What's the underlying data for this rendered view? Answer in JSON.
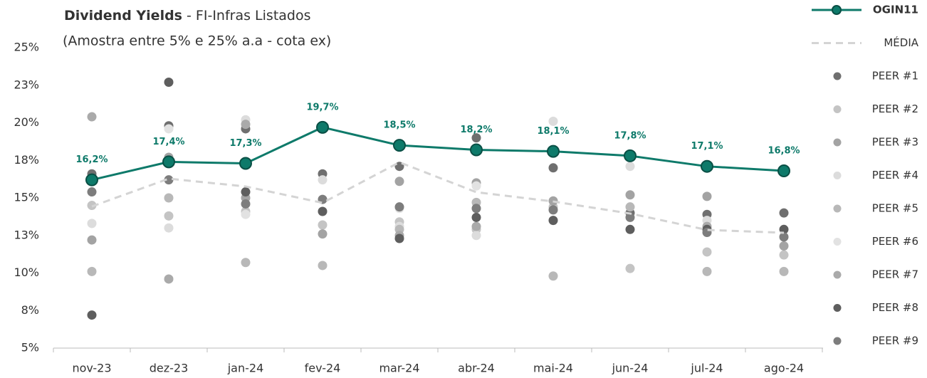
{
  "chart_data": {
    "type": "line",
    "title": "Dividend Yields",
    "title_suffix": " - FI-Infras Listados",
    "subtitle": "(Amostra entre 5% e 25% a.a - cota ex)",
    "categories": [
      "nov-23",
      "dez-23",
      "jan-24",
      "fev-24",
      "mar-24",
      "abr-24",
      "mai-24",
      "jun-24",
      "jul-24",
      "ago-24"
    ],
    "ylim": [
      5,
      25
    ],
    "yticks": [
      {
        "value": 5,
        "label": "5%"
      },
      {
        "value": 7.5,
        "label": "8%"
      },
      {
        "value": 10,
        "label": "10%"
      },
      {
        "value": 12.5,
        "label": "13%"
      },
      {
        "value": 15,
        "label": "15%"
      },
      {
        "value": 17.5,
        "label": "18%"
      },
      {
        "value": 20,
        "label": "20%"
      },
      {
        "value": 22.5,
        "label": "23%"
      },
      {
        "value": 25,
        "label": "25%"
      }
    ],
    "grid": false,
    "legend": "right",
    "series": [
      {
        "name": "OGIN11",
        "color": "#0e7a6a",
        "mode": "lines+markers",
        "values": [
          16.2,
          17.4,
          17.3,
          19.7,
          18.5,
          18.2,
          18.1,
          17.8,
          17.1,
          16.8
        ],
        "value_labels": [
          "16,2%",
          "17,4%",
          "17,3%",
          "19,7%",
          "18,5%",
          "18,2%",
          "18,1%",
          "17,8%",
          "17,1%",
          "16,8%"
        ]
      },
      {
        "name": "MÉDIA",
        "color": "#d4d4d4",
        "mode": "dashed",
        "values": [
          14.43,
          16.28,
          15.76,
          14.67,
          17.37,
          15.38,
          14.76,
          13.96,
          12.87,
          12.68
        ]
      },
      {
        "name": "PEER #1",
        "color": "#6f6f6f",
        "mode": "markers",
        "values": [
          16.6,
          19.8,
          19.6,
          16.6,
          17.1,
          19.0,
          17.0,
          14.0,
          13.9,
          14.0
        ]
      },
      {
        "name": "PEER #2",
        "color": "#c4c4c4",
        "mode": "markers",
        "values": [
          14.5,
          13.8,
          14.1,
          13.2,
          13.4,
          12.9,
          14.4,
          10.3,
          11.4,
          11.2
        ]
      },
      {
        "name": "PEER #3",
        "color": "#a3a3a3",
        "mode": "markers",
        "values": [
          12.2,
          17.7,
          15.0,
          12.6,
          16.1,
          16.0,
          14.8,
          15.2,
          15.1,
          11.8
        ]
      },
      {
        "name": "PEER #4",
        "color": "#dcdcdc",
        "mode": "markers",
        "values": [
          13.3,
          13.0,
          20.2,
          16.2,
          13.1,
          12.5,
          20.1,
          17.1,
          13.5,
          null
        ]
      },
      {
        "name": "PEER #5",
        "color": "#b8b8b8",
        "mode": "markers",
        "values": [
          10.1,
          15.0,
          10.7,
          10.5,
          12.9,
          14.7,
          9.8,
          14.4,
          10.1,
          10.1
        ]
      },
      {
        "name": "PEER #6",
        "color": "#e2e2e2",
        "mode": "markers",
        "values": [
          null,
          19.6,
          13.9,
          null,
          14.3,
          15.8,
          null,
          null,
          null,
          null
        ]
      },
      {
        "name": "PEER #7",
        "color": "#aaaaaa",
        "mode": "markers",
        "values": [
          20.4,
          9.6,
          19.9,
          null,
          12.5,
          13.1,
          null,
          null,
          13.1,
          null
        ]
      },
      {
        "name": "PEER #8",
        "color": "#5e5e5e",
        "mode": "markers",
        "values": [
          7.2,
          22.7,
          15.4,
          14.1,
          12.3,
          13.7,
          13.5,
          12.9,
          12.9,
          12.9
        ]
      },
      {
        "name": "PEER #9",
        "color": "#7d7d7d",
        "mode": "markers",
        "values": [
          15.4,
          16.2,
          14.6,
          14.9,
          14.4,
          14.3,
          14.2,
          13.7,
          12.7,
          12.4
        ]
      }
    ]
  }
}
